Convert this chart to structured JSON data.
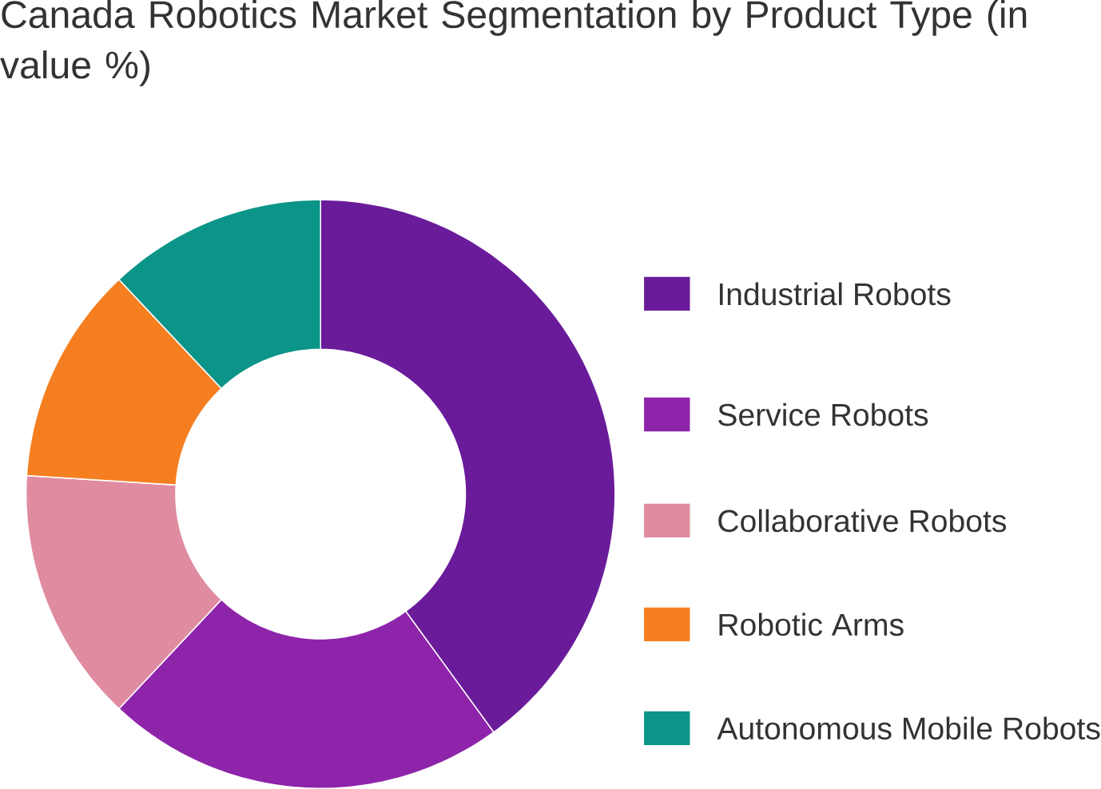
{
  "chart_data": {
    "type": "donut",
    "title": "Canada Robotics Market Segmentation by Product Type (in value %)",
    "categories": [
      "Industrial Robots",
      "Service Robots",
      "Collaborative Robots",
      "Robotic Arms",
      "Autonomous Mobile Robots"
    ],
    "values": [
      40,
      22,
      14,
      12,
      12
    ],
    "colors": [
      "#6a1b9a",
      "#8e24aa",
      "#e08ca0",
      "#f57f20",
      "#0b9488"
    ],
    "legend": "right"
  }
}
